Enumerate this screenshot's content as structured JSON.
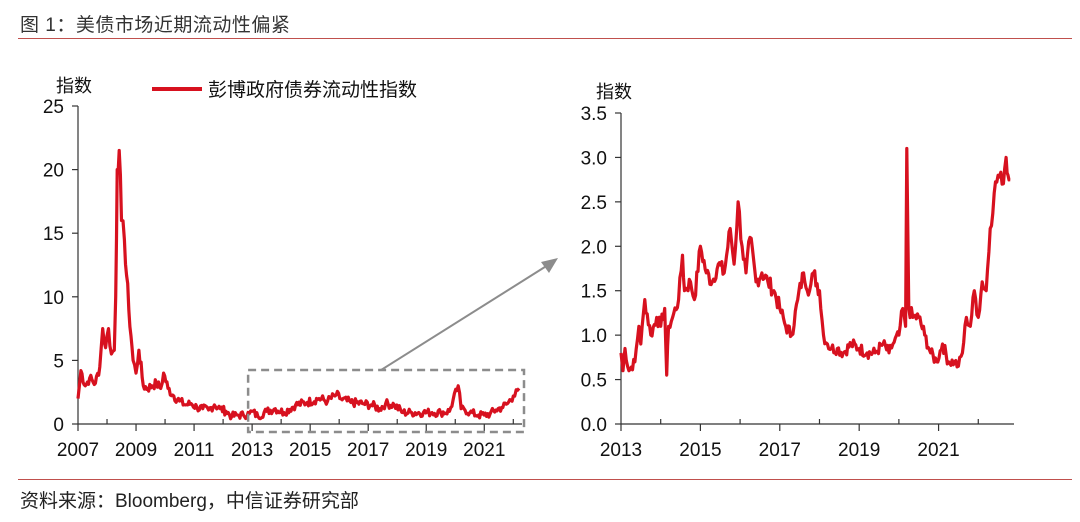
{
  "header": {
    "title": "图 1：美债市场近期流动性偏紧"
  },
  "footer": {
    "source": "资料来源：Bloomberg，中信证券研究部"
  },
  "colors": {
    "series": "#d7111f",
    "rule": "#c0504d",
    "annotation": "#8c8c8c",
    "axis": "#333333"
  },
  "chart_data": [
    {
      "type": "line",
      "title": "",
      "ylabel": "指数",
      "xlabel": "",
      "legend": {
        "entries": [
          "彭博政府债券流动性指数"
        ],
        "position": "top"
      },
      "ylim": [
        0,
        25
      ],
      "yticks": [
        0,
        5,
        10,
        15,
        20,
        25
      ],
      "xlim": [
        2007,
        2022.3
      ],
      "xticks": [
        2007,
        2009,
        2011,
        2013,
        2015,
        2017,
        2019,
        2021
      ],
      "grid": false,
      "series": [
        {
          "name": "彭博政府债券流动性指数",
          "x": [
            2007.0,
            2007.1,
            2007.25,
            2007.4,
            2007.6,
            2007.75,
            2007.85,
            2007.95,
            2008.05,
            2008.15,
            2008.25,
            2008.3,
            2008.35,
            2008.42,
            2008.5,
            2008.6,
            2008.75,
            2008.9,
            2009.0,
            2009.1,
            2009.25,
            2009.4,
            2009.55,
            2009.7,
            2009.85,
            2009.95,
            2010.1,
            2010.3,
            2010.5,
            2010.7,
            2010.9,
            2011.1,
            2011.3,
            2011.5,
            2011.7,
            2011.9,
            2012.1,
            2012.3,
            2012.5,
            2012.7,
            2012.9,
            2013.0,
            2013.2,
            2013.5,
            2013.8,
            2014.1,
            2014.5,
            2014.9,
            2015.3,
            2015.6,
            2015.9,
            2016.1,
            2016.4,
            2016.8,
            2017.1,
            2017.4,
            2017.6,
            2017.9,
            2018.2,
            2018.5,
            2018.9,
            2019.2,
            2019.5,
            2019.8,
            2020.1,
            2020.2,
            2020.3,
            2020.5,
            2020.8,
            2021.0,
            2021.2,
            2021.4,
            2021.6,
            2021.8,
            2022.0,
            2022.1,
            2022.2
          ],
          "values": [
            2.0,
            4.2,
            3.0,
            3.6,
            3.2,
            4.5,
            7.5,
            6.0,
            7.5,
            5.5,
            5.8,
            10.0,
            20.0,
            21.5,
            16.0,
            14.5,
            9.0,
            5.0,
            4.0,
            5.8,
            3.0,
            2.8,
            3.0,
            3.2,
            2.8,
            4.0,
            2.8,
            2.2,
            1.8,
            1.5,
            1.6,
            1.3,
            1.2,
            1.1,
            1.5,
            1.2,
            1.0,
            0.6,
            0.7,
            0.7,
            0.8,
            1.0,
            0.6,
            1.0,
            1.2,
            0.9,
            1.5,
            1.7,
            2.0,
            1.8,
            2.3,
            1.9,
            1.7,
            1.6,
            1.5,
            1.2,
            1.6,
            1.5,
            0.9,
            0.9,
            0.9,
            0.9,
            0.9,
            1.0,
            3.0,
            1.2,
            1.2,
            0.9,
            0.7,
            0.7,
            0.8,
            1.1,
            1.3,
            1.6,
            2.2,
            2.7,
            2.8
          ]
        }
      ],
      "annotations": [
        {
          "type": "dashed-box",
          "x_range": [
            2013,
            2022.3
          ],
          "y_range": [
            -0.6,
            4.2
          ]
        },
        {
          "type": "arrow",
          "text": "",
          "from": "dashed-box",
          "to": "right-chart"
        }
      ]
    },
    {
      "type": "line",
      "title": "",
      "ylabel": "指数",
      "xlabel": "",
      "ylim": [
        0.0,
        3.5
      ],
      "yticks": [
        "0.0",
        "0.5",
        "1.0",
        "1.5",
        "2.0",
        "2.5",
        "3.0",
        "3.5"
      ],
      "xlim": [
        2013,
        2022.9
      ],
      "xticks": [
        2013,
        2015,
        2017,
        2019,
        2021
      ],
      "grid": false,
      "series": [
        {
          "name": "彭博政府债券流动性指数",
          "x": [
            2013.0,
            2013.05,
            2013.1,
            2013.2,
            2013.35,
            2013.45,
            2013.5,
            2013.6,
            2013.75,
            2013.9,
            2014.0,
            2014.1,
            2014.15,
            2014.2,
            2014.3,
            2014.45,
            2014.55,
            2014.6,
            2014.75,
            2014.85,
            2015.0,
            2015.15,
            2015.3,
            2015.45,
            2015.6,
            2015.75,
            2015.85,
            2015.95,
            2016.05,
            2016.15,
            2016.25,
            2016.4,
            2016.55,
            2016.7,
            2016.85,
            2017.0,
            2017.15,
            2017.3,
            2017.45,
            2017.6,
            2017.75,
            2017.85,
            2018.0,
            2018.1,
            2018.2,
            2018.3,
            2018.45,
            2018.6,
            2018.8,
            2019.0,
            2019.2,
            2019.4,
            2019.6,
            2019.75,
            2019.85,
            2020.0,
            2020.1,
            2020.17,
            2020.2,
            2020.25,
            2020.35,
            2020.5,
            2020.65,
            2020.8,
            2020.95,
            2021.1,
            2021.25,
            2021.4,
            2021.5,
            2021.6,
            2021.7,
            2021.8,
            2021.9,
            2022.0,
            2022.1,
            2022.2,
            2022.3,
            2022.4,
            2022.5,
            2022.6,
            2022.7,
            2022.75,
            2022.8
          ],
          "values": [
            0.8,
            0.6,
            0.85,
            0.6,
            0.7,
            1.1,
            0.9,
            1.4,
            1.0,
            1.2,
            1.1,
            1.3,
            0.55,
            1.1,
            1.2,
            1.4,
            1.9,
            1.5,
            1.6,
            1.4,
            2.0,
            1.7,
            1.6,
            1.8,
            1.7,
            2.2,
            1.8,
            2.5,
            2.0,
            1.7,
            2.1,
            1.6,
            1.7,
            1.6,
            1.5,
            1.3,
            1.1,
            1.0,
            1.4,
            1.7,
            1.5,
            1.7,
            1.5,
            1.0,
            0.9,
            0.85,
            0.85,
            0.8,
            0.9,
            0.85,
            0.8,
            0.8,
            0.9,
            0.8,
            0.9,
            1.0,
            1.3,
            1.1,
            3.1,
            1.3,
            1.2,
            1.2,
            1.0,
            0.8,
            0.7,
            0.9,
            0.7,
            0.7,
            0.65,
            0.8,
            1.2,
            1.1,
            1.5,
            1.2,
            1.6,
            1.5,
            2.2,
            2.6,
            2.8,
            2.7,
            3.0,
            2.8,
            2.75
          ]
        }
      ]
    }
  ]
}
